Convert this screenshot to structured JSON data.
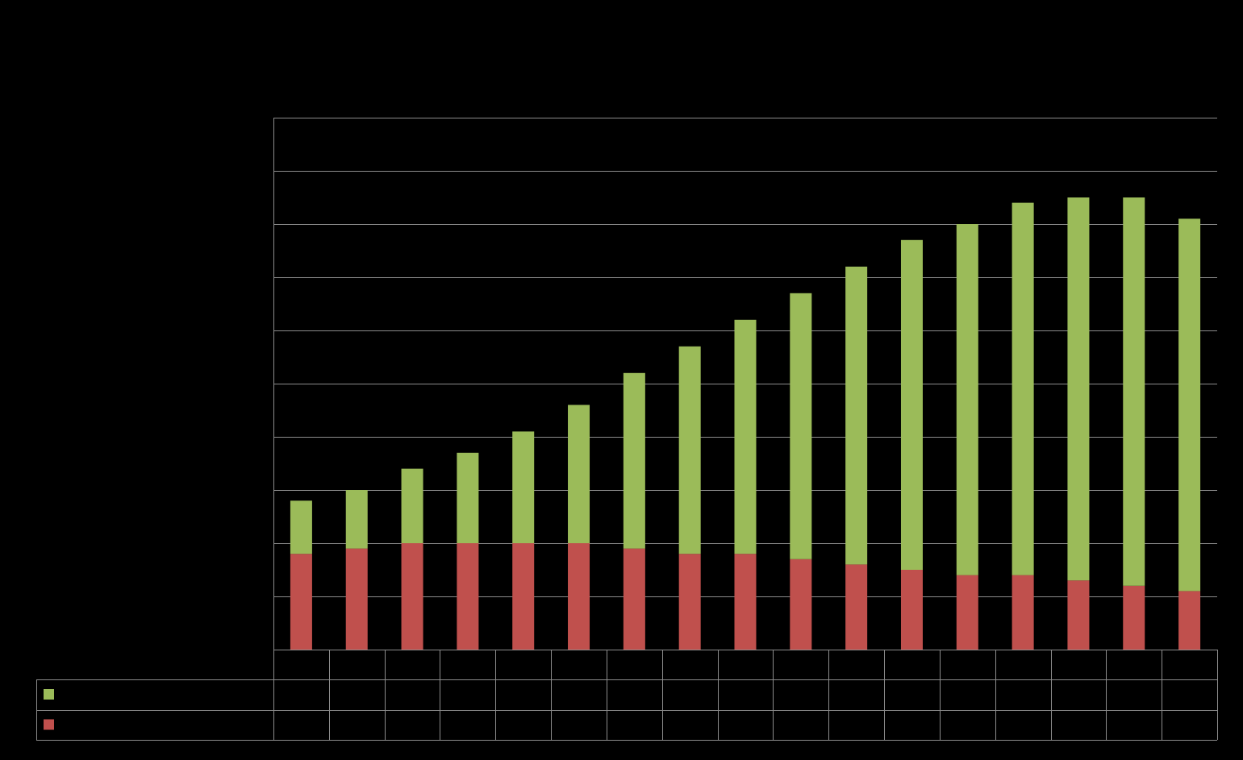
{
  "chart_data": {
    "type": "bar",
    "stacked": true,
    "categories": [
      "",
      "",
      "",
      "",
      "",
      "",
      "",
      "",
      "",
      "",
      "",
      "",
      "",
      "",
      "",
      "",
      ""
    ],
    "series": [
      {
        "name": "",
        "color": "#c0504d",
        "values": [
          18,
          19,
          20,
          20,
          20,
          20,
          19,
          18,
          18,
          17,
          16,
          15,
          14,
          14,
          13,
          12,
          11
        ]
      },
      {
        "name": "",
        "color": "#9bbb59",
        "values": [
          10,
          11,
          14,
          17,
          21,
          26,
          33,
          39,
          44,
          50,
          56,
          62,
          66,
          70,
          72,
          73,
          70
        ]
      }
    ],
    "ylim": [
      0,
      100
    ],
    "ytick_step": 10,
    "grid": true,
    "legend": "data-table-left",
    "colors": {
      "background": "#000000",
      "gridline": "#8c8c8c"
    }
  }
}
